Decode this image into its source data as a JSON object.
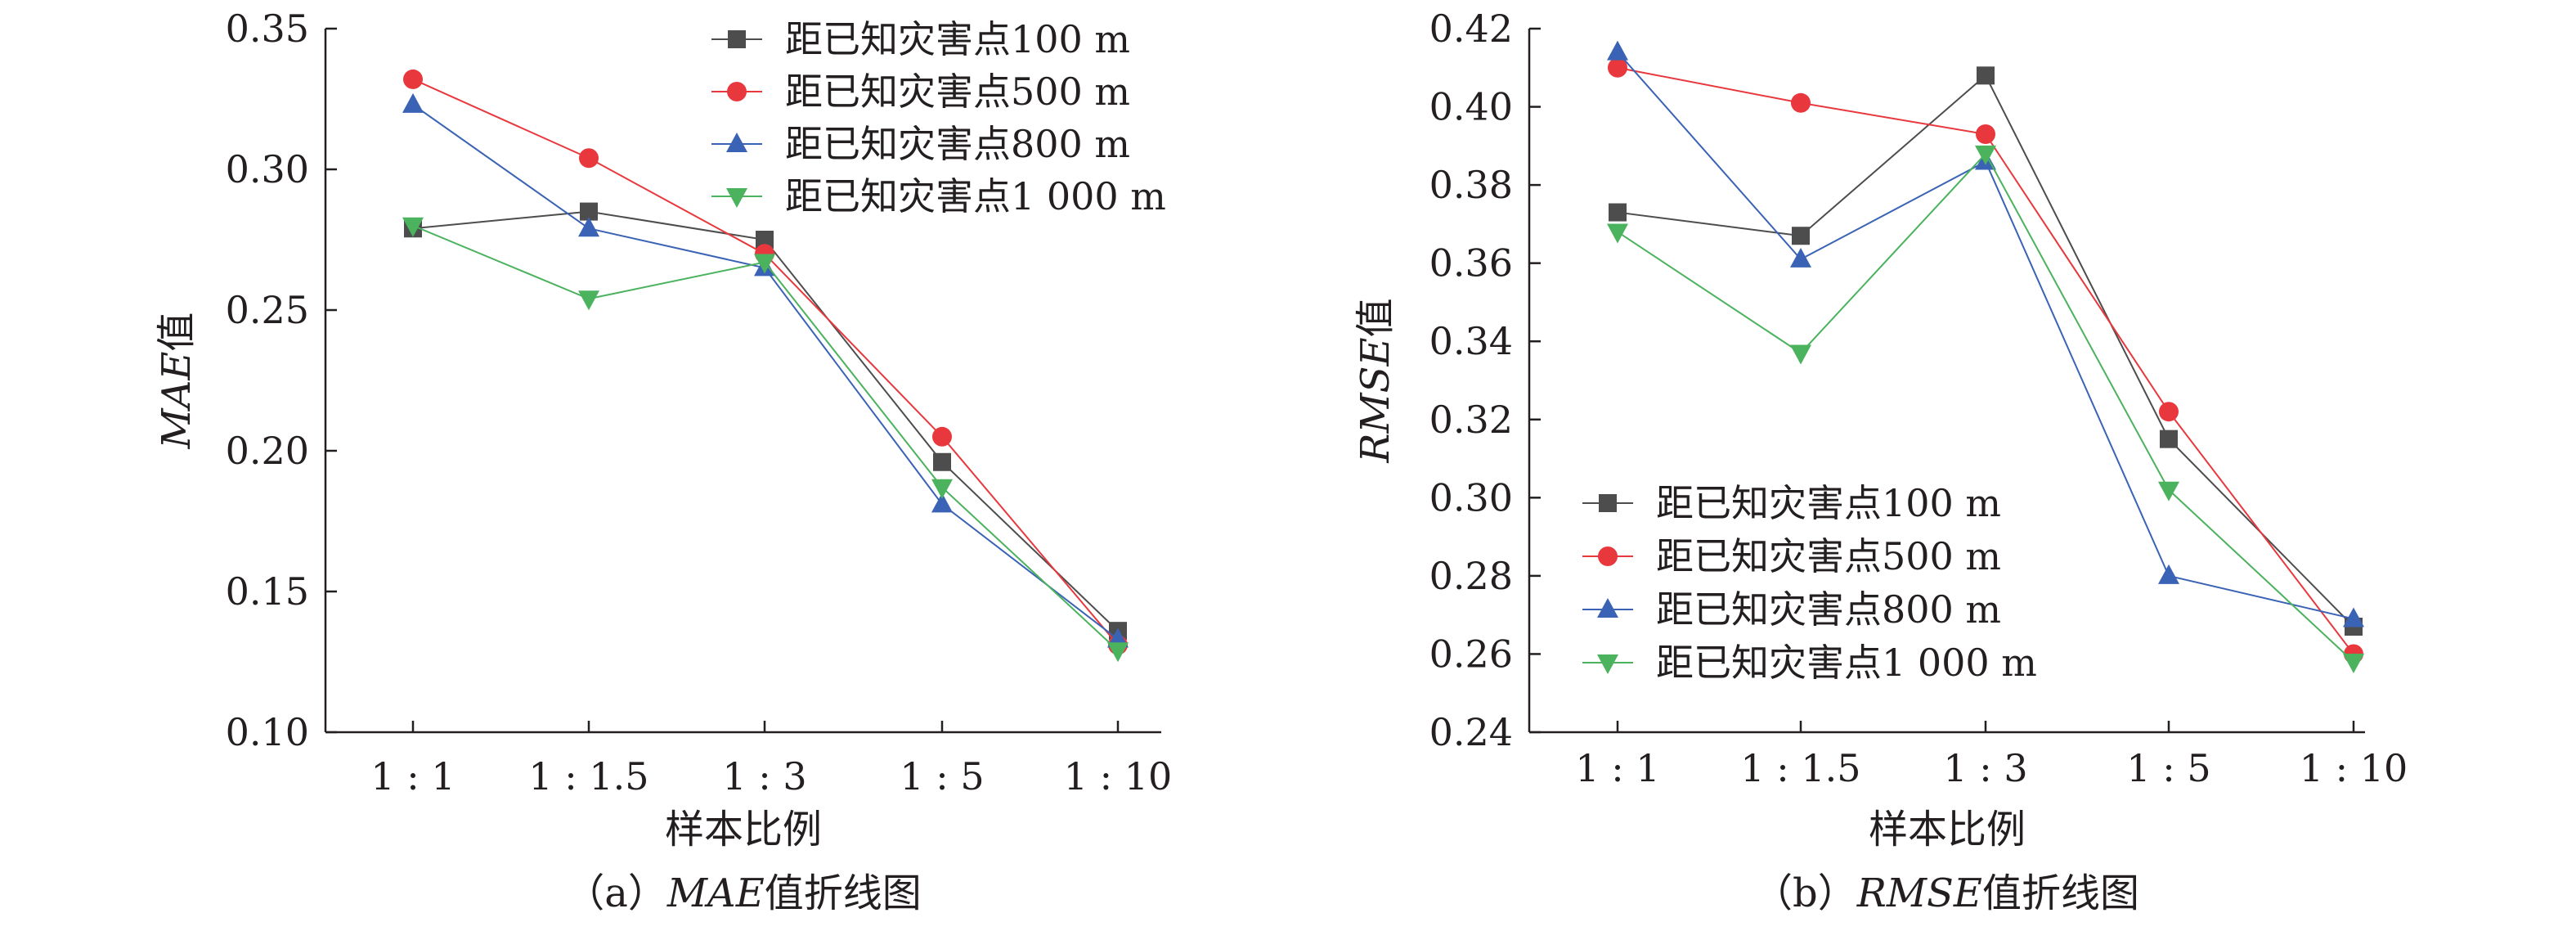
{
  "colors": {
    "s100": "#4d4d4d",
    "s500": "#e8383d",
    "s800": "#3a63b5",
    "s1000": "#4bb25d",
    "axis": "#231f20"
  },
  "chart_data": [
    {
      "type": "line",
      "id": "a",
      "caption_prefix": "（a）",
      "caption_metric": "MAE",
      "caption_suffix": "值折线图",
      "ylabel_metric": "MAE",
      "ylabel_suffix": "值",
      "xlabel": "样本比例",
      "categories": [
        "1 : 1",
        "1 : 1.5",
        "1 : 3",
        "1 : 5",
        "1 : 10"
      ],
      "ylim": [
        0.1,
        0.35
      ],
      "yticks": [
        "0.10",
        "0.15",
        "0.20",
        "0.25",
        "0.30",
        "0.35"
      ],
      "legend_position": "top-right",
      "grid": false,
      "series": [
        {
          "name": "距已知灾害点100 m",
          "marker": "square",
          "color_key": "s100",
          "values": [
            0.279,
            0.285,
            0.275,
            0.196,
            0.136
          ]
        },
        {
          "name": "距已知灾害点500 m",
          "marker": "circle",
          "color_key": "s500",
          "values": [
            0.332,
            0.304,
            0.27,
            0.205,
            0.131
          ]
        },
        {
          "name": "距已知灾害点800 m",
          "marker": "triangle-up",
          "color_key": "s800",
          "values": [
            0.323,
            0.279,
            0.265,
            0.181,
            0.133
          ]
        },
        {
          "name": "距已知灾害点1 000 m",
          "marker": "triangle-down",
          "color_key": "s1000",
          "values": [
            0.28,
            0.254,
            0.267,
            0.187,
            0.129
          ]
        }
      ]
    },
    {
      "type": "line",
      "id": "b",
      "caption_prefix": "（b）",
      "caption_metric": "RMSE",
      "caption_suffix": "值折线图",
      "ylabel_metric": "RMSE",
      "ylabel_suffix": "值",
      "xlabel": "样本比例",
      "categories": [
        "1 : 1",
        "1 : 1.5",
        "1 : 3",
        "1 : 5",
        "1 : 10"
      ],
      "ylim": [
        0.24,
        0.42
      ],
      "yticks": [
        "0.24",
        "0.26",
        "0.28",
        "0.30",
        "0.32",
        "0.34",
        "0.36",
        "0.38",
        "0.40",
        "0.42"
      ],
      "legend_position": "bottom-left",
      "grid": false,
      "series": [
        {
          "name": "距已知灾害点100 m",
          "marker": "square",
          "color_key": "s100",
          "values": [
            0.373,
            0.367,
            0.408,
            0.315,
            0.267
          ]
        },
        {
          "name": "距已知灾害点500 m",
          "marker": "circle",
          "color_key": "s500",
          "values": [
            0.41,
            0.401,
            0.393,
            0.322,
            0.26
          ]
        },
        {
          "name": "距已知灾害点800 m",
          "marker": "triangle-up",
          "color_key": "s800",
          "values": [
            0.414,
            0.361,
            0.386,
            0.28,
            0.269
          ]
        },
        {
          "name": "距已知灾害点1 000 m",
          "marker": "triangle-down",
          "color_key": "s1000",
          "values": [
            0.368,
            0.337,
            0.388,
            0.302,
            0.258
          ]
        }
      ]
    }
  ]
}
